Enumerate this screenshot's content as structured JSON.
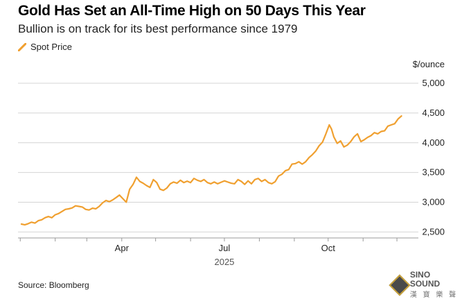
{
  "header": {
    "title": "Gold Has Set an All-Time High on 50 Days This Year",
    "subtitle": "Bullion is on track for its best performance since 1979"
  },
  "footer": {
    "source": "Source: Bloomberg"
  },
  "watermark": {
    "name": "SINO SOUND",
    "sub": "漢 寶 樂 聲"
  },
  "chart_data": {
    "type": "line",
    "title": "Gold Has Set an All-Time High on 50 Days This Year",
    "subtitle": "Bullion is on track for its best performance since 1979",
    "xlabel": "2025",
    "ylabel": "$/ounce",
    "ylim": [
      2400,
      5000
    ],
    "yticks": [
      2500,
      3000,
      3500,
      4000,
      4500,
      5000
    ],
    "ytick_labels": [
      "2,500",
      "3,000",
      "3,500",
      "4,000",
      "4,500",
      "5,000"
    ],
    "xticks": [
      {
        "label": "Apr",
        "day": 90
      },
      {
        "label": "Jul",
        "day": 181
      },
      {
        "label": "Oct",
        "day": 273
      }
    ],
    "xlim_days": [
      -2,
      353
    ],
    "grid": true,
    "legend_position": "top-left",
    "series": [
      {
        "name": "Spot Price",
        "color": "#f0a030",
        "points": [
          [
            1,
            2633
          ],
          [
            4,
            2620
          ],
          [
            7,
            2640
          ],
          [
            10,
            2665
          ],
          [
            13,
            2650
          ],
          [
            16,
            2690
          ],
          [
            19,
            2705
          ],
          [
            22,
            2740
          ],
          [
            25,
            2760
          ],
          [
            28,
            2740
          ],
          [
            31,
            2790
          ],
          [
            34,
            2810
          ],
          [
            37,
            2845
          ],
          [
            40,
            2880
          ],
          [
            43,
            2890
          ],
          [
            46,
            2905
          ],
          [
            49,
            2940
          ],
          [
            52,
            2930
          ],
          [
            55,
            2920
          ],
          [
            58,
            2880
          ],
          [
            61,
            2870
          ],
          [
            64,
            2900
          ],
          [
            67,
            2890
          ],
          [
            70,
            2930
          ],
          [
            73,
            2990
          ],
          [
            76,
            3030
          ],
          [
            79,
            3010
          ],
          [
            82,
            3040
          ],
          [
            85,
            3080
          ],
          [
            88,
            3120
          ],
          [
            91,
            3060
          ],
          [
            94,
            3000
          ],
          [
            97,
            3220
          ],
          [
            100,
            3300
          ],
          [
            103,
            3420
          ],
          [
            106,
            3350
          ],
          [
            109,
            3320
          ],
          [
            112,
            3280
          ],
          [
            115,
            3250
          ],
          [
            118,
            3380
          ],
          [
            121,
            3330
          ],
          [
            124,
            3220
          ],
          [
            127,
            3200
          ],
          [
            130,
            3240
          ],
          [
            133,
            3310
          ],
          [
            136,
            3340
          ],
          [
            139,
            3320
          ],
          [
            142,
            3370
          ],
          [
            145,
            3330
          ],
          [
            148,
            3355
          ],
          [
            151,
            3330
          ],
          [
            154,
            3400
          ],
          [
            157,
            3370
          ],
          [
            160,
            3350
          ],
          [
            163,
            3380
          ],
          [
            166,
            3330
          ],
          [
            169,
            3310
          ],
          [
            172,
            3340
          ],
          [
            175,
            3310
          ],
          [
            178,
            3335
          ],
          [
            181,
            3360
          ],
          [
            184,
            3340
          ],
          [
            187,
            3320
          ],
          [
            190,
            3310
          ],
          [
            193,
            3380
          ],
          [
            196,
            3350
          ],
          [
            199,
            3300
          ],
          [
            202,
            3360
          ],
          [
            205,
            3310
          ],
          [
            208,
            3380
          ],
          [
            211,
            3400
          ],
          [
            214,
            3350
          ],
          [
            217,
            3380
          ],
          [
            220,
            3330
          ],
          [
            223,
            3310
          ],
          [
            226,
            3345
          ],
          [
            229,
            3440
          ],
          [
            232,
            3470
          ],
          [
            235,
            3530
          ],
          [
            238,
            3550
          ],
          [
            241,
            3640
          ],
          [
            244,
            3650
          ],
          [
            247,
            3680
          ],
          [
            250,
            3640
          ],
          [
            253,
            3680
          ],
          [
            256,
            3750
          ],
          [
            259,
            3800
          ],
          [
            262,
            3860
          ],
          [
            265,
            3950
          ],
          [
            268,
            4010
          ],
          [
            271,
            4150
          ],
          [
            274,
            4300
          ],
          [
            276,
            4230
          ],
          [
            278,
            4100
          ],
          [
            281,
            3990
          ],
          [
            284,
            4030
          ],
          [
            287,
            3930
          ],
          [
            290,
            3960
          ],
          [
            293,
            4020
          ],
          [
            296,
            4100
          ],
          [
            299,
            4150
          ],
          [
            302,
            4020
          ],
          [
            305,
            4050
          ],
          [
            308,
            4090
          ],
          [
            311,
            4120
          ],
          [
            314,
            4170
          ],
          [
            317,
            4150
          ],
          [
            320,
            4190
          ],
          [
            323,
            4200
          ],
          [
            326,
            4280
          ],
          [
            329,
            4300
          ],
          [
            332,
            4320
          ],
          [
            335,
            4400
          ],
          [
            338,
            4450
          ]
        ]
      }
    ]
  }
}
